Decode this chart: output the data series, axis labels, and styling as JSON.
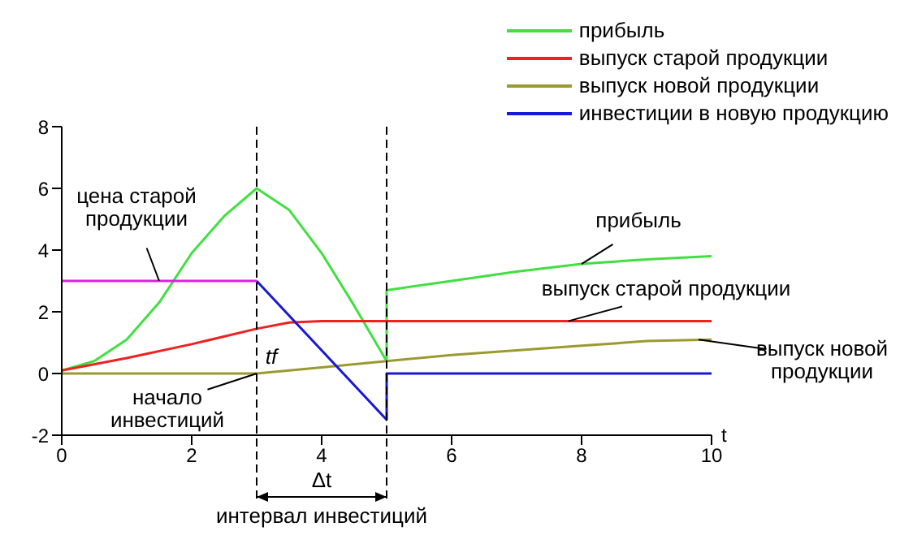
{
  "chart_data": {
    "type": "line",
    "xlabel": "t",
    "xlim": [
      0,
      10
    ],
    "xticks": [
      0,
      2,
      4,
      6,
      8,
      10
    ],
    "ylim": [
      -2,
      8
    ],
    "yticks": [
      -2,
      0,
      2,
      4,
      6,
      8
    ],
    "legend": "top right",
    "marker": "none",
    "line_style": "solid",
    "series": [
      {
        "name": "прибыль",
        "color": "#40e040",
        "x": [
          0,
          0.5,
          1,
          1.5,
          2,
          2.5,
          3,
          3.5,
          4,
          4.5,
          5,
          5,
          6,
          7,
          8,
          9,
          10
        ],
        "values": [
          0.1,
          0.4,
          1.1,
          2.3,
          3.9,
          5.1,
          6,
          5.3,
          3.9,
          2.2,
          0.4,
          2.7,
          3.0,
          3.3,
          3.55,
          3.7,
          3.8
        ]
      },
      {
        "name": "выпуск старой продукции",
        "color": "#f02020",
        "x": [
          0,
          1,
          2,
          3,
          3.5,
          4,
          5,
          10
        ],
        "values": [
          0.1,
          0.5,
          0.95,
          1.45,
          1.65,
          1.7,
          1.7,
          1.7
        ]
      },
      {
        "name": "выпуск новой продукции",
        "color": "#9a9a30",
        "x": [
          0,
          3,
          4,
          5,
          6,
          7,
          8,
          9,
          10
        ],
        "values": [
          0,
          0,
          0.2,
          0.4,
          0.6,
          0.75,
          0.9,
          1.05,
          1.1
        ]
      },
      {
        "name": "инвестиции в новую продукцию",
        "color": "#1818d8",
        "x": [
          3,
          5,
          5,
          10
        ],
        "values": [
          3,
          -1.5,
          0,
          0
        ]
      },
      {
        "color": "#e020e0",
        "x": [
          0,
          3
        ],
        "values": [
          3,
          3
        ]
      }
    ],
    "ref_lines": [
      {
        "axis": "x",
        "value": 3,
        "line_style": "dashed",
        "color": "#000000"
      },
      {
        "axis": "x",
        "value": 5,
        "line_style": "dashed",
        "color": "#000000"
      }
    ],
    "annotations": [
      {
        "text": "цена старой продукции",
        "x": 1.5,
        "y": 3
      },
      {
        "text": "прибыль",
        "x": 8,
        "y": 3.55
      },
      {
        "text": "выпуск старой продукции",
        "x": 7.8,
        "y": 1.7
      },
      {
        "text": "выпуск новой продукции",
        "x": 9.8,
        "y": 1.1
      },
      {
        "text": "начало инвестиций",
        "x": 3,
        "y": 0
      },
      {
        "text": "tf",
        "x": 3,
        "y": 0
      },
      "Δt",
      "интервал инвестиций"
    ]
  }
}
